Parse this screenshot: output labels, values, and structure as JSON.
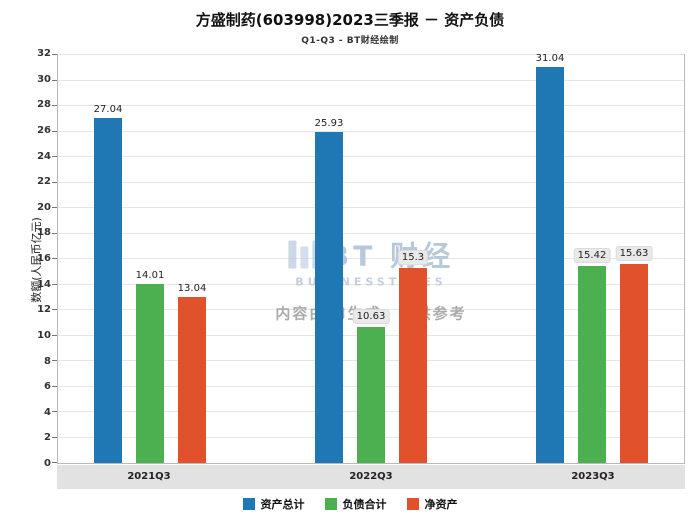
{
  "watermark": {
    "logo": "BT 财经",
    "sub": "BUSINESSTIMES",
    "disclaimer": "内容由AI生成，仅供参考"
  },
  "chart_data": {
    "type": "bar",
    "title": "方盛制药(603998)2023三季报 － 资产负债",
    "subtitle": "Q1-Q3 - BT财经绘制",
    "categories": [
      "2021Q3",
      "2022Q3",
      "2023Q3"
    ],
    "series": [
      {
        "name": "资产总计",
        "color": "#1f77b4",
        "values": [
          27.04,
          25.93,
          31.04
        ]
      },
      {
        "name": "负债合计",
        "color": "#4caf50",
        "values": [
          14.01,
          10.63,
          15.42
        ]
      },
      {
        "name": "净资产",
        "color": "#e1512b",
        "values": [
          13.04,
          15.3,
          15.63
        ]
      }
    ],
    "xlabel": "",
    "ylabel": "数额(人民币亿元)",
    "ylim": [
      0,
      32
    ],
    "ytick_step": 2,
    "grid": true,
    "legend_position": "bottom",
    "label_boxes": [
      [
        false,
        false,
        false
      ],
      [
        false,
        true,
        true
      ],
      [
        false,
        true,
        true
      ]
    ]
  }
}
